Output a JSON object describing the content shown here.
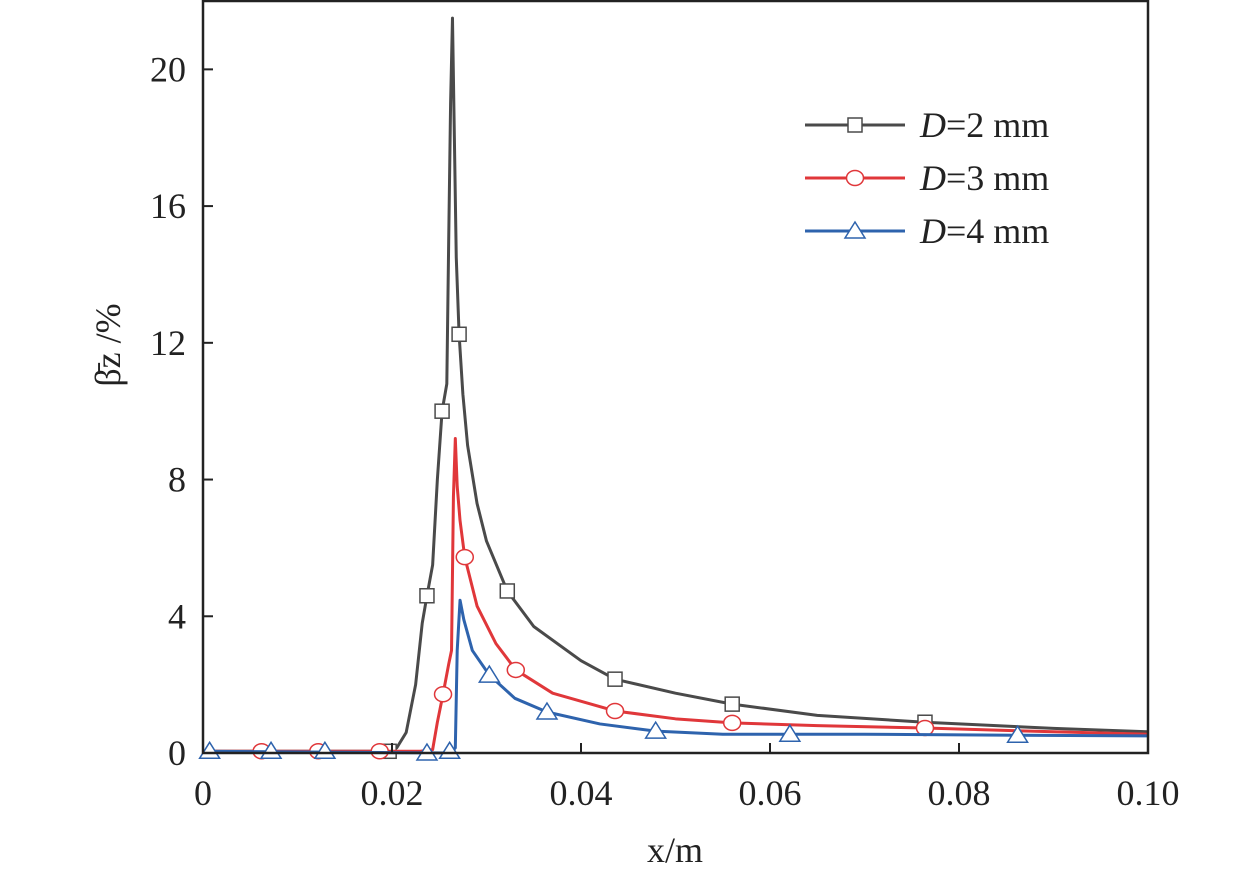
{
  "chart_data": {
    "type": "line",
    "title": "",
    "xlabel": "x/m",
    "ylabel": "β̄z /%",
    "xlim": [
      0,
      0.1
    ],
    "ylim": [
      0,
      22
    ],
    "x_ticks": [
      0,
      0.02,
      0.04,
      0.06,
      0.08,
      0.1
    ],
    "x_tick_labels": [
      "0",
      "0.02",
      "0.04",
      "0.06",
      "0.08",
      "0.10"
    ],
    "y_ticks": [
      0,
      4,
      8,
      12,
      16,
      20
    ],
    "y_tick_labels": [
      "0",
      "4",
      "8",
      "12",
      "16",
      "20"
    ],
    "grid": false,
    "legend_position": "top-right",
    "series": [
      {
        "name": "D=2 mm",
        "label_italic": "D",
        "label_rest": "=2 mm",
        "color": "#4a4a4a",
        "marker": "square",
        "line": [
          [
            0,
            0.05
          ],
          [
            0.019,
            0.05
          ],
          [
            0.0205,
            0.15
          ],
          [
            0.0215,
            0.6
          ],
          [
            0.0225,
            2.0
          ],
          [
            0.0232,
            3.8
          ],
          [
            0.0237,
            4.6
          ],
          [
            0.0243,
            5.5
          ],
          [
            0.0248,
            8.0
          ],
          [
            0.0253,
            10.0
          ],
          [
            0.0258,
            10.8
          ],
          [
            0.026,
            15
          ],
          [
            0.0262,
            19
          ],
          [
            0.0264,
            21.5
          ],
          [
            0.0266,
            18
          ],
          [
            0.0268,
            14.5
          ],
          [
            0.0271,
            12.25
          ],
          [
            0.0275,
            10.5
          ],
          [
            0.028,
            9.0
          ],
          [
            0.029,
            7.3
          ],
          [
            0.03,
            6.2
          ],
          [
            0.0322,
            4.74
          ],
          [
            0.035,
            3.7
          ],
          [
            0.04,
            2.7
          ],
          [
            0.0436,
            2.16
          ],
          [
            0.05,
            1.75
          ],
          [
            0.056,
            1.43
          ],
          [
            0.065,
            1.1
          ],
          [
            0.0764,
            0.9
          ],
          [
            0.09,
            0.72
          ],
          [
            0.1,
            0.62
          ]
        ],
        "markers": [
          [
            0.0197,
            0.05
          ],
          [
            0.0237,
            4.6
          ],
          [
            0.0253,
            10.0
          ],
          [
            0.0271,
            12.25
          ],
          [
            0.0322,
            4.74
          ],
          [
            0.0436,
            2.16
          ],
          [
            0.056,
            1.43
          ],
          [
            0.0764,
            0.9
          ]
        ]
      },
      {
        "name": "D=3 mm",
        "label_italic": "D",
        "label_rest": "=3 mm",
        "color": "#e0373a",
        "marker": "circle",
        "line": [
          [
            0,
            0.05
          ],
          [
            0.023,
            0.05
          ],
          [
            0.0243,
            0.1
          ],
          [
            0.0248,
            0.9
          ],
          [
            0.0254,
            1.72
          ],
          [
            0.026,
            2.6
          ],
          [
            0.0263,
            3.0
          ],
          [
            0.0265,
            7.5
          ],
          [
            0.0267,
            9.2
          ],
          [
            0.0269,
            7.8
          ],
          [
            0.0272,
            6.8
          ],
          [
            0.0277,
            5.73
          ],
          [
            0.029,
            4.3
          ],
          [
            0.031,
            3.2
          ],
          [
            0.0331,
            2.43
          ],
          [
            0.037,
            1.75
          ],
          [
            0.0436,
            1.23
          ],
          [
            0.05,
            1.0
          ],
          [
            0.056,
            0.88
          ],
          [
            0.065,
            0.8
          ],
          [
            0.0764,
            0.73
          ],
          [
            0.09,
            0.62
          ],
          [
            0.1,
            0.55
          ]
        ],
        "markers": [
          [
            0.0062,
            0.05
          ],
          [
            0.0122,
            0.05
          ],
          [
            0.0187,
            0.05
          ],
          [
            0.0254,
            1.72
          ],
          [
            0.0277,
            5.73
          ],
          [
            0.0331,
            2.43
          ],
          [
            0.0436,
            1.23
          ],
          [
            0.056,
            0.88
          ],
          [
            0.0764,
            0.73
          ]
        ]
      },
      {
        "name": "D=4 mm",
        "label_italic": "D",
        "label_rest": "=4 mm",
        "color": "#2e63ad",
        "marker": "triangle",
        "line": [
          [
            0,
            0.05
          ],
          [
            0.0262,
            0.0
          ],
          [
            0.0267,
            0.15
          ],
          [
            0.0269,
            3.0
          ],
          [
            0.0272,
            4.47
          ],
          [
            0.0276,
            3.9
          ],
          [
            0.0285,
            3.0
          ],
          [
            0.0303,
            2.28
          ],
          [
            0.033,
            1.6
          ],
          [
            0.0364,
            1.2
          ],
          [
            0.042,
            0.85
          ],
          [
            0.0479,
            0.64
          ],
          [
            0.055,
            0.55
          ],
          [
            0.0621,
            0.55
          ],
          [
            0.07,
            0.55
          ],
          [
            0.0862,
            0.52
          ],
          [
            0.1,
            0.5
          ]
        ],
        "markers": [
          [
            0.0007,
            0.05
          ],
          [
            0.0072,
            0.05
          ],
          [
            0.0129,
            0.05
          ],
          [
            0.0237,
            0.0
          ],
          [
            0.0261,
            0.05
          ],
          [
            0.0303,
            2.28
          ],
          [
            0.0364,
            1.2
          ],
          [
            0.0479,
            0.64
          ],
          [
            0.0621,
            0.55
          ],
          [
            0.0862,
            0.52
          ]
        ]
      }
    ]
  }
}
